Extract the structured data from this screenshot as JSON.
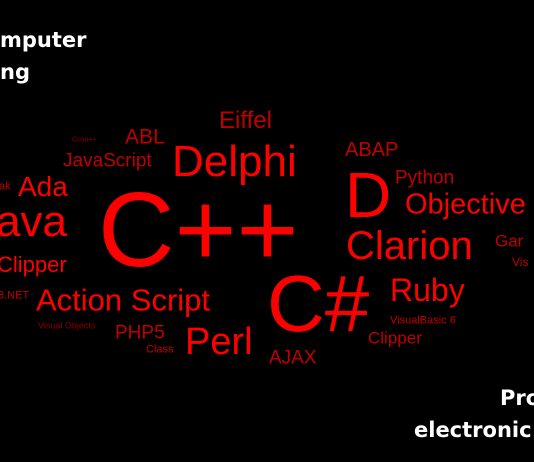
{
  "caption_top_left": [
    "mputer",
    "ng"
  ],
  "caption_bottom_right": [
    "Pro",
    "electronic"
  ],
  "colors": {
    "background": "#000000",
    "caption": "#ffffff",
    "bright_red": "#ff0000",
    "mid_red": "#c00000",
    "dark_red": "#8a0000"
  },
  "word_cloud": {
    "c_plus_plus": "C++",
    "c_sharp": "C#",
    "delphi": "Delphi",
    "d": "D",
    "clarion": "Clarion",
    "action_script": "Action Script",
    "java": "ava",
    "perl": "Perl",
    "ruby": "Ruby",
    "objective": "Objective",
    "ada": "Ada",
    "clipper_left": "Clipper",
    "clipper_right": "Clipper",
    "eiffel": "Eiffel",
    "abl": "ABL",
    "javascript": "JavaScript",
    "abap": "ABAP",
    "python": "Python",
    "php5": "PHP5",
    "ajax": "AJAX",
    "class": "Class",
    "visual_objects": "Visual Objects",
    "visualbasic": "VisualBasic 6",
    "dotnet": "3.NET",
    "squeak": "ak",
    "gar": "Gar",
    "vis": "Vis",
    "small_top": "Cuso++"
  }
}
